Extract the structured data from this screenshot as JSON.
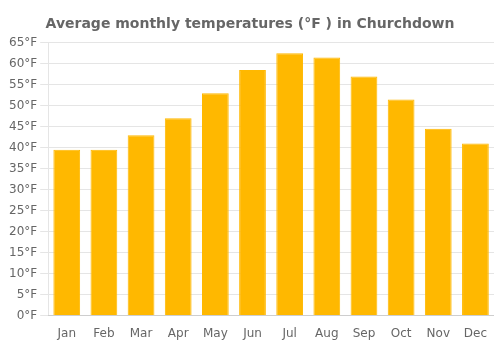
{
  "chart_data": {
    "type": "bar",
    "title": "Average monthly temperatures (°F ) in Churchdown",
    "categories": [
      "Jan",
      "Feb",
      "Mar",
      "Apr",
      "May",
      "Jun",
      "Jul",
      "Aug",
      "Sep",
      "Oct",
      "Nov",
      "Dec"
    ],
    "values": [
      39.5,
      39.5,
      43.0,
      47.0,
      53.0,
      58.5,
      62.5,
      61.5,
      57.0,
      51.5,
      44.5,
      41.0
    ],
    "color": "#FFB800",
    "ylim": [
      0,
      65
    ],
    "yticks": [
      {
        "value": 0,
        "label": "0°F"
      },
      {
        "value": 5,
        "label": "5°F"
      },
      {
        "value": 10,
        "label": "10°F"
      },
      {
        "value": 15,
        "label": "15°F"
      },
      {
        "value": 20,
        "label": "20°F"
      },
      {
        "value": 25,
        "label": "25°F"
      },
      {
        "value": 30,
        "label": "30°F"
      },
      {
        "value": 35,
        "label": "35°F"
      },
      {
        "value": 40,
        "label": "40°F"
      },
      {
        "value": 45,
        "label": "45°F"
      },
      {
        "value": 50,
        "label": "50°F"
      },
      {
        "value": 55,
        "label": "55°F"
      },
      {
        "value": 60,
        "label": "60°F"
      },
      {
        "value": 65,
        "label": "65°F"
      }
    ],
    "grid": true
  }
}
